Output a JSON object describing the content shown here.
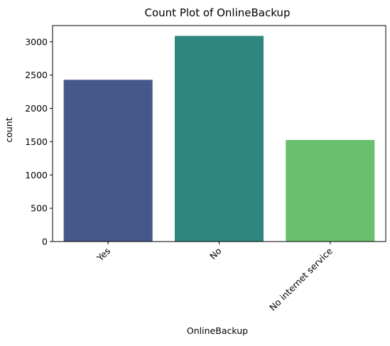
{
  "chart_data": {
    "type": "bar",
    "title": "Count Plot of OnlineBackup",
    "xlabel": "OnlineBackup",
    "ylabel": "count",
    "categories": [
      "Yes",
      "No",
      "No internet service"
    ],
    "values": [
      2429,
      3088,
      1526
    ],
    "colors": [
      "#46588a",
      "#2d877f",
      "#6abf6e"
    ],
    "ylim": [
      0,
      3243
    ],
    "yticks": [
      0,
      500,
      1000,
      1500,
      2000,
      2500,
      3000
    ],
    "grid": false,
    "x_tick_rotation": 45
  }
}
